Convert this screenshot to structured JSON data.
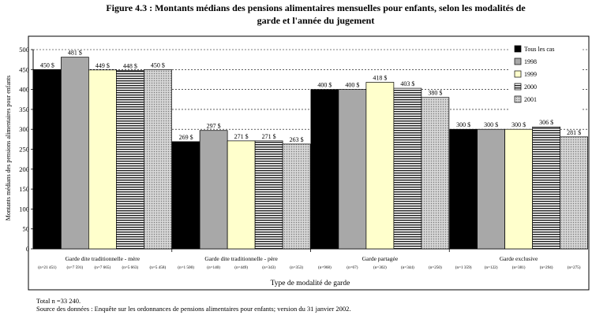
{
  "figure": {
    "title_line1": "Figure 4.3 : Montants médians des pensions alimentaires mensuelles pour enfants, selon les modalités de",
    "title_line2": "garde et l'année du jugement"
  },
  "footer": {
    "total": "Total n =33 240.",
    "source": "Source des données : Enquête sur les ordonnances de pensions alimentaires pour enfants; version du 31 janvier 2002."
  },
  "colors": {
    "series": [
      "#000000",
      "#a8a8a8",
      "#ffffcc",
      "hatch",
      "dots"
    ]
  },
  "chart_data": {
    "type": "bar",
    "xlabel": "Type de modalité de garde",
    "ylabel": "Montants médians des pensions alimentaires pour enfants",
    "ylim": [
      0,
      500
    ],
    "yticks": [
      0,
      50,
      100,
      150,
      200,
      250,
      300,
      350,
      400,
      450,
      500
    ],
    "grid": "dashed horizontal",
    "legend_position": "right",
    "categories": [
      "Garde dite traditionnelle - mère",
      "Garde dite traditionnelle - père",
      "Garde partagée",
      "Garde exclusive"
    ],
    "category_counts": [
      [
        "(n=21 451)",
        "(n=7 591)",
        "(n=7 665)",
        "(n=5 663)",
        "(n=5 458)"
      ],
      [
        "(n=1 500)",
        "(n=140)",
        "(n=449)",
        "(n=343)",
        "(n=353)"
      ],
      [
        "(n=968)",
        "(n=67)",
        "(n=302)",
        "(n=344)",
        "(n=250)"
      ],
      [
        "(n=1 359)",
        "(n=122)",
        "(n=381)",
        "(n=294)",
        "(n=275)"
      ]
    ],
    "series": [
      {
        "name": "Tous les cas",
        "values": [
          450,
          269,
          400,
          300
        ],
        "labels": [
          "450 $",
          "269 $",
          "400 $",
          "300 $"
        ]
      },
      {
        "name": "1998",
        "values": [
          481,
          297,
          400,
          300
        ],
        "labels": [
          "481 $",
          "297 $",
          "400 $",
          "300 $"
        ]
      },
      {
        "name": "1999",
        "values": [
          449,
          271,
          418,
          300
        ],
        "labels": [
          "449 $",
          "271 $",
          "418 $",
          "300 $"
        ]
      },
      {
        "name": "2000",
        "values": [
          448,
          271,
          403,
          306
        ],
        "labels": [
          "448 $",
          "271 $",
          "403 $",
          "306 $"
        ]
      },
      {
        "name": "2001",
        "values": [
          450,
          263,
          380,
          281
        ],
        "labels": [
          "450 $",
          "263 $",
          "380 $",
          "281 $"
        ]
      }
    ]
  }
}
